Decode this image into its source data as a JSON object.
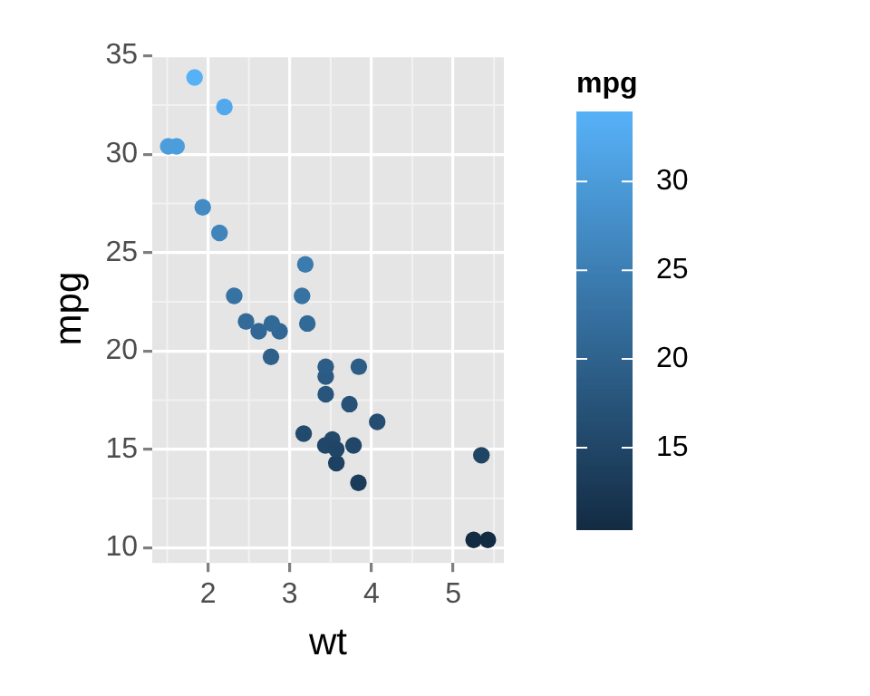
{
  "chart_data": {
    "type": "scatter",
    "xlabel": "wt",
    "ylabel": "mpg",
    "clabel": "mpg",
    "x": [
      2.62,
      2.875,
      2.32,
      3.215,
      3.44,
      3.46,
      3.57,
      3.19,
      3.15,
      3.44,
      3.44,
      4.07,
      3.73,
      3.78,
      5.25,
      5.424,
      5.345,
      2.2,
      1.615,
      1.835,
      2.465,
      3.52,
      3.435,
      3.84,
      3.845,
      1.935,
      2.14,
      1.513,
      3.17,
      2.77,
      3.57,
      2.78
    ],
    "values": [
      21.0,
      21.0,
      22.8,
      21.4,
      18.7,
      null,
      14.3,
      24.4,
      22.8,
      19.2,
      17.8,
      16.4,
      17.3,
      15.2,
      10.4,
      10.4,
      14.7,
      32.4,
      30.4,
      33.9,
      21.5,
      15.5,
      15.2,
      13.3,
      19.2,
      27.3,
      26.0,
      30.4,
      15.8,
      19.7,
      15.0,
      21.4
    ],
    "cvalues": [
      21.0,
      21.0,
      22.8,
      21.4,
      18.7,
      null,
      14.3,
      24.4,
      22.8,
      19.2,
      17.8,
      16.4,
      17.3,
      15.2,
      10.4,
      10.4,
      14.7,
      32.4,
      30.4,
      33.9,
      21.5,
      15.5,
      15.2,
      13.3,
      19.2,
      27.3,
      26.0,
      30.4,
      15.8,
      19.7,
      15.0,
      21.4
    ],
    "clim": [
      10.4,
      33.9
    ],
    "cticks": [
      15,
      20,
      25,
      30
    ],
    "xlim": [
      1.317,
      5.62
    ],
    "xticks": [
      2,
      3,
      4,
      5
    ],
    "ylim": [
      9.225,
      35.075
    ],
    "yticks": [
      10,
      15,
      20,
      25,
      30,
      35
    ],
    "grid": true,
    "marker": "circle",
    "legend": false
  }
}
